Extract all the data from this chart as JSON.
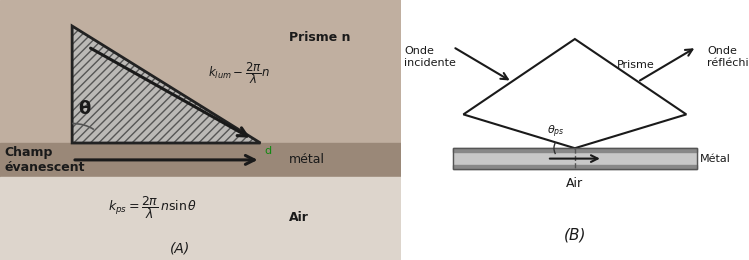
{
  "fig_width": 7.49,
  "fig_height": 2.6,
  "dpi": 100,
  "bg_color": "#ffffff",
  "panel_A": {
    "prisme_color": "#c0afa0",
    "metal_color": "#9a8878",
    "air_color": "#ddd5cc",
    "text_color": "#1a1a1a",
    "arrow_color": "#1a1a1a",
    "label_prisme": "Prisme n",
    "label_metal": "métal",
    "label_air": "Air",
    "label_champ": "Champ\névanescent",
    "label_d": "d",
    "label_theta": "$\\mathbf{\\theta}$",
    "formula_klum": "$k_{lum} - \\dfrac{2\\pi}{\\lambda}n$",
    "formula_kps": "$k_{ps} = \\dfrac{2\\pi}{\\lambda}\\,n\\sin\\theta$",
    "label_A": "(A)"
  },
  "panel_B": {
    "text_color": "#1a1a1a",
    "arrow_color": "#1a1a1a",
    "label_prisme": "Prisme",
    "label_metal": "Métal",
    "label_air": "Air",
    "label_onde_inc": "Onde\nincidente",
    "label_onde_ref": "Onde\nréfléchie",
    "label_theta": "$\\theta_{ps}$",
    "label_B": "(B)"
  }
}
